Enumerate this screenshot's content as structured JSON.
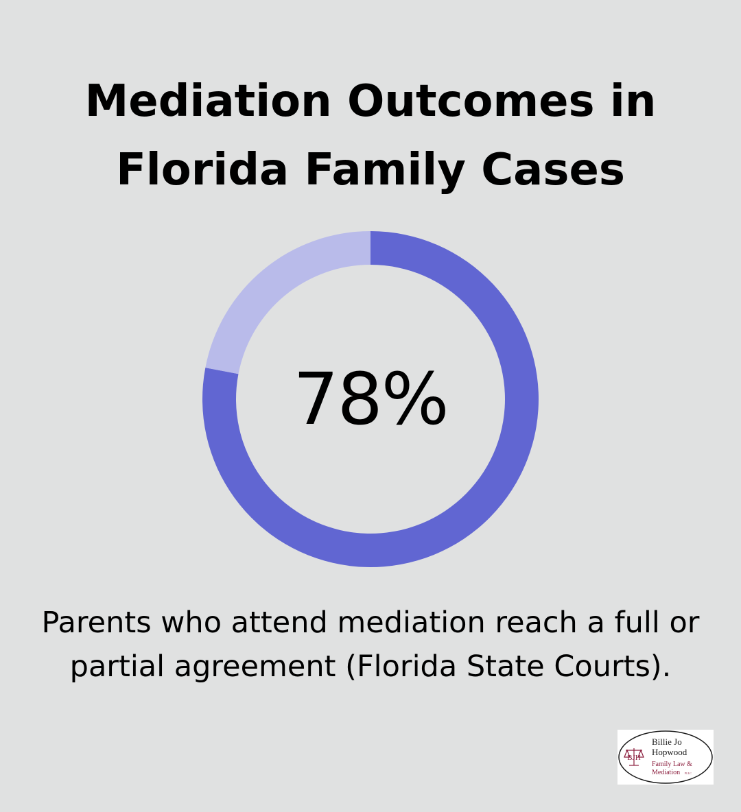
{
  "title": {
    "line1": "Mediation Outcomes in",
    "line2": "Florida Family Cases"
  },
  "chart_data": {
    "type": "pie",
    "variant": "donut",
    "value_label": "78%",
    "slices": [
      {
        "value": 78,
        "color": "#6166d2"
      },
      {
        "value": 22,
        "color": "#b9bbea"
      }
    ]
  },
  "caption": {
    "line1": "Parents who attend mediation reach a full or",
    "line2": "partial agreement (Florida State Courts)."
  },
  "logo": {
    "monogram": "BJH",
    "name_line1": "Billie Jo",
    "name_line2": "Hopwood",
    "sub_line1": "Family Law &",
    "sub_line2": "Mediation",
    "suffix": "PLLC",
    "colors": {
      "text": "#1a1a1a",
      "accent": "#8a1c3c"
    }
  }
}
